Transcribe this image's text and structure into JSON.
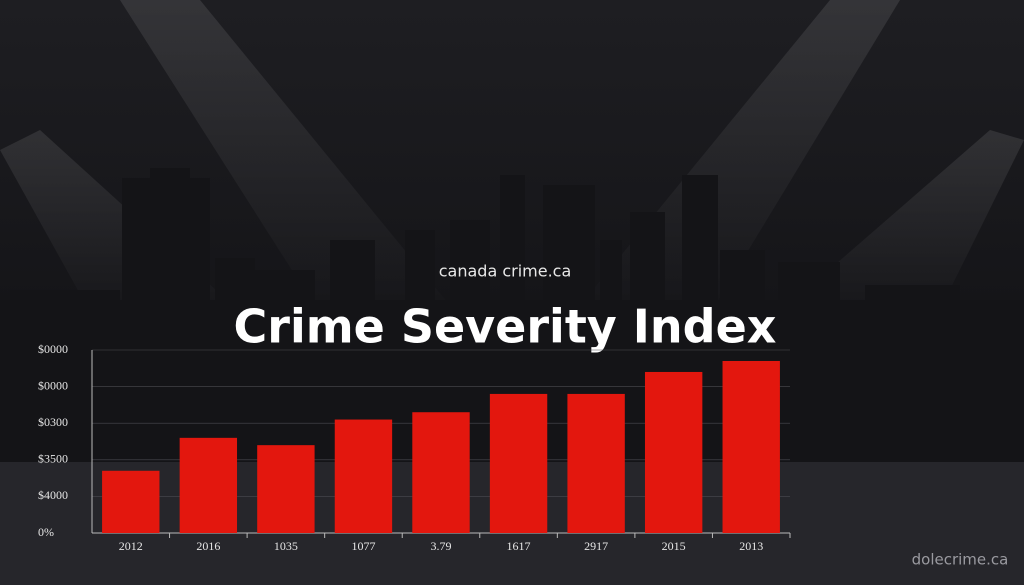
{
  "chart_data": {
    "type": "bar",
    "title": "Crime Severity Index",
    "subtitle": "canada crime.ca",
    "source": "dolecrime.ca",
    "categories": [
      "2012",
      "2016",
      "1035",
      "1077",
      "3.79",
      "1617",
      "2917",
      "2015",
      "2013"
    ],
    "values": [
      1.7,
      2.6,
      2.4,
      3.1,
      3.3,
      3.8,
      3.8,
      4.4,
      4.7
    ],
    "color": "#e3170e",
    "ylim": [
      0,
      5
    ],
    "yticks": [
      {
        "value": 0,
        "label": "0%"
      },
      {
        "value": 1,
        "label": "$4000"
      },
      {
        "value": 2,
        "label": "$3500"
      },
      {
        "value": 3,
        "label": "$0300"
      },
      {
        "value": 4,
        "label": "$0000"
      },
      {
        "value": 5,
        "label": "$0000"
      }
    ],
    "grid": true
  }
}
